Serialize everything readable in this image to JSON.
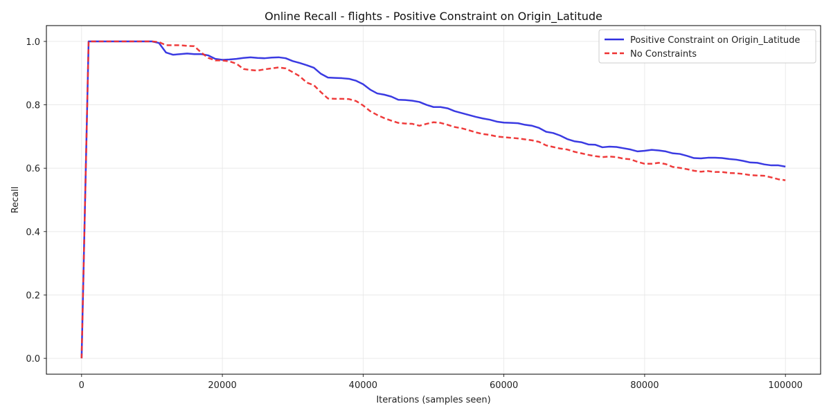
{
  "chart_data": {
    "type": "line",
    "title": "Online Recall - flights - Positive Constraint on Origin_Latitude",
    "xlabel": "Iterations (samples seen)",
    "ylabel": "Recall",
    "xlim": [
      -5000,
      105000
    ],
    "ylim": [
      -0.05,
      1.05
    ],
    "x_ticks": [
      0,
      20000,
      40000,
      60000,
      80000,
      100000
    ],
    "x_tick_labels": [
      "0",
      "20000",
      "40000",
      "60000",
      "80000",
      "100000"
    ],
    "y_ticks": [
      0.0,
      0.2,
      0.4,
      0.6,
      0.8,
      1.0
    ],
    "y_tick_labels": [
      "0.0",
      "0.2",
      "0.4",
      "0.6",
      "0.8",
      "1.0"
    ],
    "grid": true,
    "legend_position": "top-right",
    "series": [
      {
        "name": "Positive Constraint on Origin_Latitude",
        "color": "#2f2fe0",
        "style": "solid",
        "x": [
          0,
          1000,
          2000,
          3000,
          4000,
          5000,
          6000,
          7000,
          8000,
          9000,
          10000,
          11000,
          12000,
          13000,
          14000,
          15000,
          16000,
          17000,
          18000,
          19000,
          20000,
          21000,
          22000,
          23000,
          24000,
          25000,
          26000,
          27000,
          28000,
          29000,
          30000,
          31000,
          32000,
          33000,
          34000,
          35000,
          36000,
          37000,
          38000,
          39000,
          40000,
          41000,
          42000,
          43000,
          44000,
          45000,
          46000,
          47000,
          48000,
          49000,
          50000,
          51000,
          52000,
          53000,
          54000,
          55000,
          56000,
          57000,
          58000,
          59000,
          60000,
          61000,
          62000,
          63000,
          64000,
          65000,
          66000,
          67000,
          68000,
          69000,
          70000,
          71000,
          72000,
          73000,
          74000,
          75000,
          76000,
          77000,
          78000,
          79000,
          80000,
          81000,
          82000,
          83000,
          84000,
          85000,
          86000,
          87000,
          88000,
          89000,
          90000,
          91000,
          92000,
          93000,
          94000,
          95000,
          96000,
          97000,
          98000,
          99000,
          100000
        ],
        "y": [
          0.0,
          1.0,
          1.0,
          1.0,
          1.0,
          1.0,
          1.0,
          1.0,
          1.0,
          1.0,
          1.0,
          0.995,
          0.965,
          0.958,
          0.96,
          0.962,
          0.96,
          0.96,
          0.956,
          0.945,
          0.942,
          0.943,
          0.945,
          0.948,
          0.95,
          0.948,
          0.947,
          0.949,
          0.95,
          0.947,
          0.938,
          0.932,
          0.925,
          0.917,
          0.898,
          0.886,
          0.885,
          0.884,
          0.882,
          0.876,
          0.865,
          0.848,
          0.836,
          0.832,
          0.826,
          0.816,
          0.815,
          0.813,
          0.809,
          0.8,
          0.793,
          0.793,
          0.789,
          0.78,
          0.774,
          0.768,
          0.762,
          0.757,
          0.753,
          0.747,
          0.744,
          0.743,
          0.742,
          0.737,
          0.734,
          0.727,
          0.715,
          0.711,
          0.703,
          0.692,
          0.685,
          0.682,
          0.675,
          0.674,
          0.666,
          0.668,
          0.667,
          0.663,
          0.659,
          0.653,
          0.655,
          0.658,
          0.656,
          0.653,
          0.647,
          0.645,
          0.639,
          0.632,
          0.631,
          0.633,
          0.633,
          0.632,
          0.629,
          0.627,
          0.623,
          0.618,
          0.617,
          0.612,
          0.609,
          0.609,
          0.605
        ]
      },
      {
        "name": "No Constraints",
        "color": "#ee3030",
        "style": "dashed",
        "x": [
          0,
          1000,
          2000,
          3000,
          4000,
          5000,
          6000,
          7000,
          8000,
          9000,
          10000,
          11000,
          12000,
          13000,
          14000,
          15000,
          16000,
          17000,
          18000,
          19000,
          20000,
          21000,
          22000,
          23000,
          24000,
          25000,
          26000,
          27000,
          28000,
          29000,
          30000,
          31000,
          32000,
          33000,
          34000,
          35000,
          36000,
          37000,
          38000,
          39000,
          40000,
          41000,
          42000,
          43000,
          44000,
          45000,
          46000,
          47000,
          48000,
          49000,
          50000,
          51000,
          52000,
          53000,
          54000,
          55000,
          56000,
          57000,
          58000,
          59000,
          60000,
          61000,
          62000,
          63000,
          64000,
          65000,
          66000,
          67000,
          68000,
          69000,
          70000,
          71000,
          72000,
          73000,
          74000,
          75000,
          76000,
          77000,
          78000,
          79000,
          80000,
          81000,
          82000,
          83000,
          84000,
          85000,
          86000,
          87000,
          88000,
          89000,
          90000,
          91000,
          92000,
          93000,
          94000,
          95000,
          96000,
          97000,
          98000,
          99000,
          100000
        ],
        "y": [
          0.0,
          1.0,
          1.0,
          1.0,
          1.0,
          1.0,
          1.0,
          1.0,
          1.0,
          1.0,
          1.0,
          0.998,
          0.988,
          0.988,
          0.988,
          0.986,
          0.985,
          0.965,
          0.948,
          0.94,
          0.94,
          0.937,
          0.93,
          0.913,
          0.91,
          0.908,
          0.912,
          0.915,
          0.918,
          0.915,
          0.903,
          0.89,
          0.87,
          0.862,
          0.84,
          0.82,
          0.819,
          0.819,
          0.818,
          0.812,
          0.798,
          0.78,
          0.768,
          0.758,
          0.75,
          0.743,
          0.741,
          0.74,
          0.734,
          0.74,
          0.745,
          0.743,
          0.737,
          0.73,
          0.726,
          0.72,
          0.713,
          0.708,
          0.705,
          0.7,
          0.698,
          0.696,
          0.694,
          0.691,
          0.688,
          0.683,
          0.672,
          0.667,
          0.662,
          0.659,
          0.652,
          0.647,
          0.642,
          0.638,
          0.635,
          0.637,
          0.635,
          0.63,
          0.628,
          0.62,
          0.614,
          0.614,
          0.617,
          0.613,
          0.604,
          0.601,
          0.597,
          0.592,
          0.589,
          0.591,
          0.588,
          0.588,
          0.585,
          0.584,
          0.582,
          0.578,
          0.577,
          0.576,
          0.571,
          0.565,
          0.562
        ]
      }
    ]
  }
}
